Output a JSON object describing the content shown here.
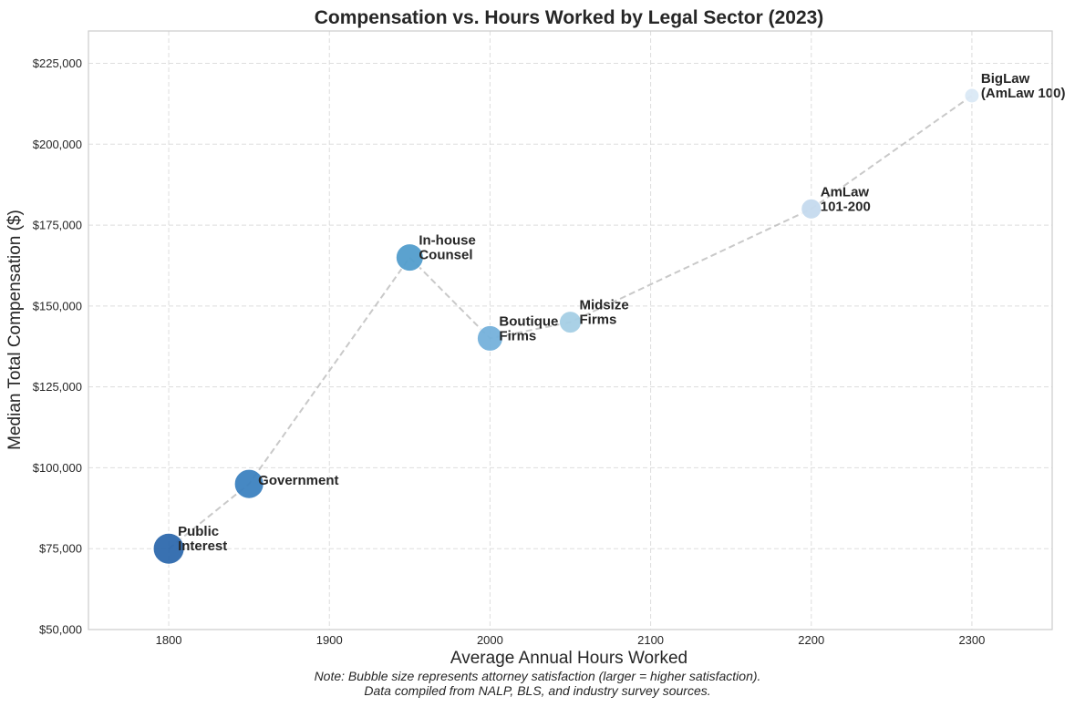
{
  "chart_data": {
    "type": "scatter",
    "title": "Compensation vs. Hours Worked by Legal Sector (2023)",
    "xlabel": "Average Annual Hours Worked",
    "ylabel": "Median Total Compensation ($)",
    "xlim": [
      1750,
      2350
    ],
    "ylim": [
      50000,
      235000
    ],
    "xticks": [
      1800,
      1900,
      2000,
      2100,
      2200,
      2300
    ],
    "yticks": [
      50000,
      75000,
      100000,
      125000,
      150000,
      175000,
      200000,
      225000
    ],
    "ytick_labels": [
      "$50,000",
      "$75,000",
      "$100,000",
      "$125,000",
      "$150,000",
      "$175,000",
      "$200,000",
      "$225,000"
    ],
    "grid": true,
    "connecting_line": "dashed",
    "points": [
      {
        "label": [
          "Public",
          "Interest"
        ],
        "x": 1800,
        "y": 75000,
        "relative_size": 1.0,
        "color": "#2f6aad"
      },
      {
        "label": [
          "Government"
        ],
        "x": 1850,
        "y": 95000,
        "relative_size": 0.89,
        "color": "#3d82c0"
      },
      {
        "label": [
          "In-house",
          "Counsel"
        ],
        "x": 1950,
        "y": 165000,
        "relative_size": 0.78,
        "color": "#539ecd"
      },
      {
        "label": [
          "Boutique",
          "Firms"
        ],
        "x": 2000,
        "y": 140000,
        "relative_size": 0.68,
        "color": "#75b2dc"
      },
      {
        "label": [
          "Midsize",
          "Firms"
        ],
        "x": 2050,
        "y": 145000,
        "relative_size": 0.5,
        "color": "#a6cfe5"
      },
      {
        "label": [
          "AmLaw",
          "101-200"
        ],
        "x": 2200,
        "y": 180000,
        "relative_size": 0.42,
        "color": "#c6dbef"
      },
      {
        "label": [
          "BigLaw",
          "(AmLaw 100)"
        ],
        "x": 2300,
        "y": 215000,
        "relative_size": 0.22,
        "color": "#dbe9f6"
      }
    ]
  },
  "note": {
    "line1": "Note: Bubble size represents attorney satisfaction (larger = higher satisfaction).",
    "line2": "Data compiled from NALP, BLS, and industry survey sources."
  }
}
